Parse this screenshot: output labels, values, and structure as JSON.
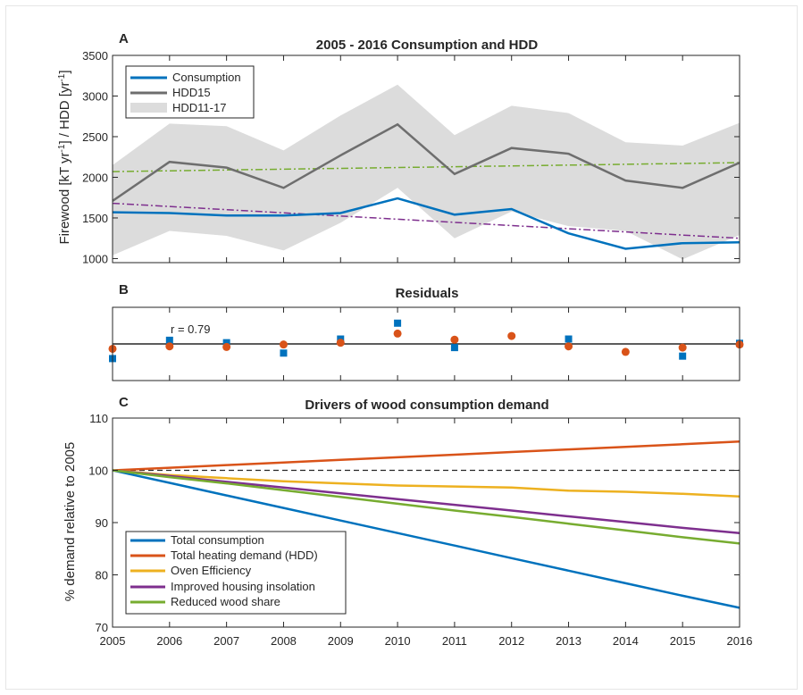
{
  "chart_data": [
    {
      "panel": "A",
      "type": "line",
      "title": "2005 - 2016 Consumption and HDD",
      "ylabel": "Firewood [kT yr-1] / HDD [yr-1]",
      "ylim": [
        950,
        3500
      ],
      "yticks": [
        1000,
        1500,
        2000,
        2500,
        3000,
        3500
      ],
      "x": [
        2005,
        2006,
        2007,
        2008,
        2009,
        2010,
        2011,
        2012,
        2013,
        2014,
        2015,
        2016
      ],
      "legend_position": "top-left",
      "series": [
        {
          "name": "Consumption",
          "color": "#0072bd",
          "values": [
            1570,
            1560,
            1530,
            1530,
            1560,
            1740,
            1540,
            1610,
            1310,
            1120,
            1190,
            1200
          ]
        },
        {
          "name": "HDD15",
          "color": "#6e6e6e",
          "values": [
            1710,
            2190,
            2120,
            1870,
            2270,
            2650,
            2040,
            2360,
            2290,
            1960,
            1870,
            2180
          ]
        },
        {
          "name": "HDD11-17",
          "type": "band",
          "color": "#dcdcdc",
          "upper": [
            2150,
            2660,
            2630,
            2330,
            2760,
            3140,
            2520,
            2880,
            2790,
            2430,
            2390,
            2670
          ],
          "lower": [
            1040,
            1340,
            1280,
            1100,
            1440,
            1870,
            1250,
            1580,
            1400,
            1340,
            990,
            1290
          ]
        }
      ],
      "trend_lines": [
        {
          "color": "#77ac30",
          "style": "dash-dot",
          "start": 2070,
          "end": 2180
        },
        {
          "color": "#7e2f8e",
          "style": "dash-dot",
          "start": 1680,
          "end": 1250
        }
      ]
    },
    {
      "panel": "B",
      "type": "scatter",
      "title": "Residuals",
      "annotation": "r = 0.79",
      "ylim": [
        -300,
        300
      ],
      "x": [
        2005,
        2006,
        2007,
        2008,
        2009,
        2010,
        2011,
        2012,
        2013,
        2014,
        2015,
        2016
      ],
      "series": [
        {
          "color": "#0072bd",
          "marker": "square",
          "values": [
            -120,
            30,
            10,
            -75,
            40,
            170,
            -30,
            null,
            40,
            null,
            -100,
            5
          ]
        },
        {
          "color": "#d95319",
          "marker": "circle",
          "values": [
            -40,
            -20,
            -25,
            -5,
            10,
            85,
            35,
            65,
            -20,
            -65,
            -30,
            -5
          ]
        }
      ]
    },
    {
      "panel": "C",
      "type": "line",
      "title": "Drivers of wood consumption demand",
      "ylabel": "% demand relative to 2005",
      "ylim": [
        70,
        110
      ],
      "yticks": [
        70,
        80,
        90,
        100,
        110
      ],
      "x": [
        2005,
        2006,
        2007,
        2008,
        2009,
        2010,
        2011,
        2012,
        2013,
        2014,
        2015,
        2016
      ],
      "xticks": [
        "2005",
        "2006",
        "2007",
        "2008",
        "2009",
        "2010",
        "2011",
        "2012",
        "2013",
        "2014",
        "2015",
        "2016"
      ],
      "reference_line": 100,
      "legend_position": "bottom-left",
      "series": [
        {
          "name": "Total consumption",
          "color": "#0072bd",
          "values": [
            100,
            97.6,
            95.2,
            92.8,
            90.4,
            88.0,
            85.6,
            83.2,
            80.8,
            78.4,
            76.0,
            73.7
          ]
        },
        {
          "name": "Total heating demand (HDD)",
          "color": "#d95319",
          "values": [
            100,
            100.5,
            101.0,
            101.5,
            102.0,
            102.5,
            103.0,
            103.5,
            104.0,
            104.5,
            105.0,
            105.5
          ]
        },
        {
          "name": "Oven Efficiency",
          "color": "#edb120",
          "values": [
            100,
            99.1,
            98.5,
            97.9,
            97.5,
            97.1,
            96.9,
            96.7,
            96.1,
            95.9,
            95.5,
            95.0
          ]
        },
        {
          "name": "Improved housing insolation",
          "color": "#7e2f8e",
          "values": [
            100,
            98.9,
            97.8,
            96.7,
            95.6,
            94.5,
            93.4,
            92.3,
            91.2,
            90.1,
            89.0,
            88.0
          ]
        },
        {
          "name": "Reduced wood share",
          "color": "#77ac30",
          "values": [
            100,
            98.7,
            97.5,
            96.2,
            94.9,
            93.6,
            92.3,
            91.1,
            89.8,
            88.5,
            87.2,
            86.0
          ]
        }
      ]
    }
  ]
}
